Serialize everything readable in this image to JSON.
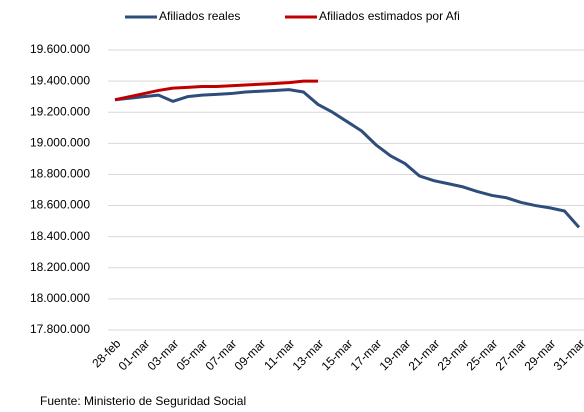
{
  "chart_data": {
    "type": "line",
    "categories": [
      "28-feb",
      null,
      "01-mar",
      null,
      "03-mar",
      null,
      "05-mar",
      null,
      "07-mar",
      null,
      "09-mar",
      null,
      "11-mar",
      null,
      "13-mar",
      null,
      "15-mar",
      null,
      "17-mar",
      null,
      "19-mar",
      null,
      "21-mar",
      null,
      "23-mar",
      null,
      "25-mar",
      null,
      "27-mar",
      null,
      "29-mar",
      null,
      "31-mar"
    ],
    "series": [
      {
        "name": "Afiliados reales",
        "color": "#2e4d7b",
        "values": [
          19280000,
          19290000,
          19300000,
          19310000,
          19270000,
          19300000,
          19310000,
          19315000,
          19320000,
          19330000,
          19335000,
          19340000,
          19345000,
          19330000,
          19250000,
          19200000,
          19140000,
          19080000,
          18990000,
          18920000,
          18870000,
          18790000,
          18760000,
          18740000,
          18720000,
          18690000,
          18665000,
          18650000,
          18620000,
          18600000,
          18585000,
          18565000,
          18460000
        ]
      },
      {
        "name": "Afiliados estimados por Afi",
        "color": "#c00000",
        "values": [
          19280000,
          19300000,
          19320000,
          19340000,
          19355000,
          19360000,
          19365000,
          19365000,
          19370000,
          19375000,
          19380000,
          19385000,
          19390000,
          19400000,
          19400000,
          null,
          null,
          null,
          null,
          null,
          null,
          null,
          null,
          null,
          null,
          null,
          null,
          null,
          null,
          null,
          null,
          null,
          null
        ]
      }
    ],
    "ylim": [
      17800000,
      19600000
    ],
    "yticks": [
      {
        "value": 17800000,
        "label": "17.800.000"
      },
      {
        "value": 18000000,
        "label": "18.000.000"
      },
      {
        "value": 18200000,
        "label": "18.200.000"
      },
      {
        "value": 18400000,
        "label": "18.400.000"
      },
      {
        "value": 18600000,
        "label": "18.600.000"
      },
      {
        "value": 18800000,
        "label": "18.800.000"
      },
      {
        "value": 19000000,
        "label": "19.000.000"
      },
      {
        "value": 19200000,
        "label": "19.200.000"
      },
      {
        "value": 19400000,
        "label": "19.400.000"
      },
      {
        "value": 19600000,
        "label": "19.600.000"
      }
    ],
    "grid": true,
    "legend": "top",
    "source": "Fuente: Ministerio de Seguridad Social"
  }
}
